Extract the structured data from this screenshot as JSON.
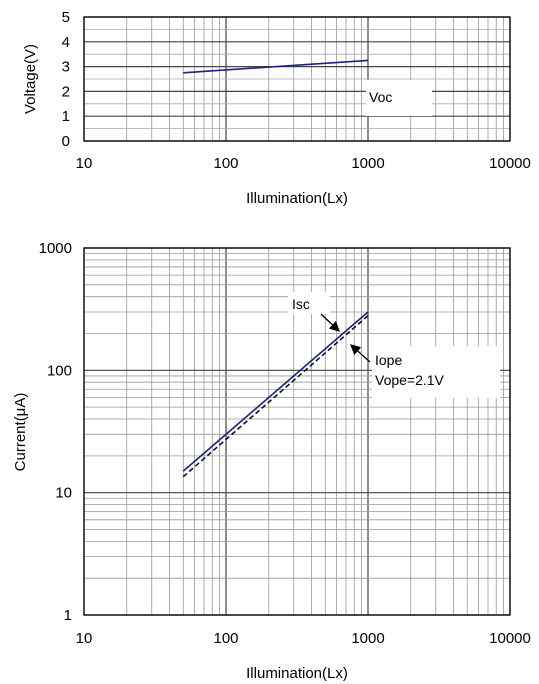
{
  "chart_data": [
    {
      "type": "line",
      "xscale": "log",
      "xlim": [
        10,
        10000
      ],
      "ylim": [
        0,
        5
      ],
      "xlabel": "Illumination(Lx)",
      "ylabel": "Voltage(V)",
      "xticks": [
        "10",
        "100",
        "1000",
        "10000"
      ],
      "yticks": [
        "0",
        "1",
        "2",
        "3",
        "4",
        "5"
      ],
      "grid": true,
      "series": [
        {
          "name": "Voc",
          "x": [
            50,
            1000
          ],
          "y": [
            2.75,
            3.25
          ],
          "color": "#1a237e",
          "dash": false
        }
      ],
      "annotations": [
        {
          "text": "Voc"
        }
      ]
    },
    {
      "type": "line",
      "xscale": "log",
      "yscale": "log",
      "xlim": [
        10,
        10000
      ],
      "ylim": [
        1,
        1000
      ],
      "xlabel": "Illumination(Lx)",
      "ylabel": "Current(μA)",
      "xticks": [
        "10",
        "100",
        "1000",
        "10000"
      ],
      "yticks": [
        "1",
        "10",
        "100",
        "1000"
      ],
      "grid": true,
      "series": [
        {
          "name": "Isc",
          "x": [
            50,
            1000
          ],
          "y": [
            15,
            300
          ],
          "color": "#1a237e",
          "dash": false
        },
        {
          "name": "Iope",
          "x": [
            50,
            1000
          ],
          "y": [
            13.5,
            280
          ],
          "color": "#111111",
          "dash": true
        }
      ],
      "annotations": [
        {
          "text": "Isc"
        },
        {
          "text": "Iope"
        },
        {
          "text": "Vope=2.1V"
        }
      ]
    }
  ]
}
